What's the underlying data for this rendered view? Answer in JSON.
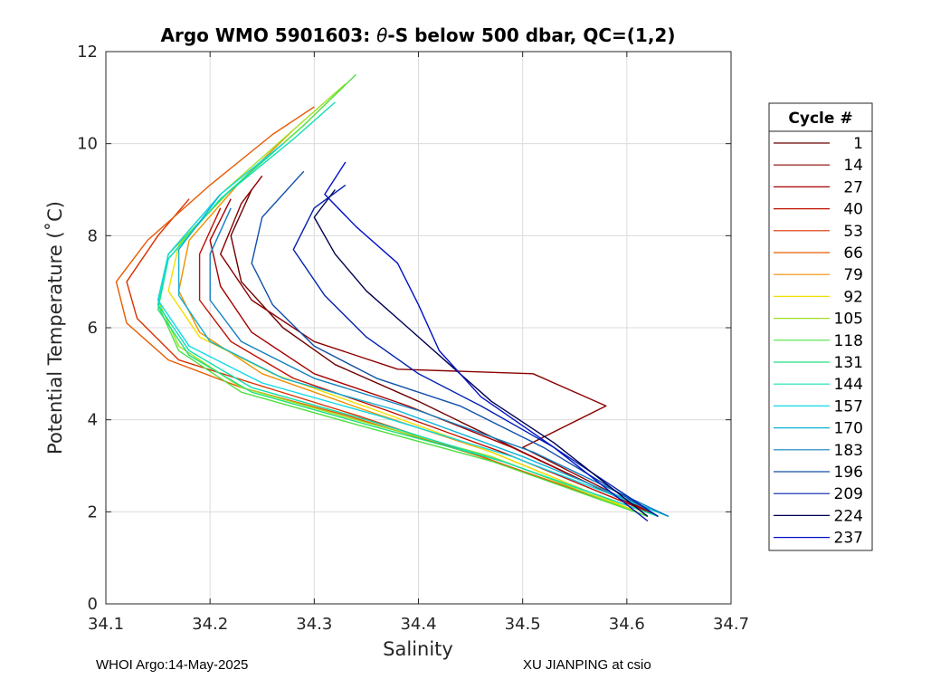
{
  "chart_data": {
    "type": "line",
    "title_prefix": "Argo WMO 5901603: ",
    "title_symbol": "θ",
    "title_suffix": "-S below 500 dbar,  QC=(1,2)",
    "xlabel": "Salinity",
    "ylabel": "Potential Temperature (˚C)",
    "xlim": [
      34.1,
      34.7
    ],
    "ylim": [
      0,
      12
    ],
    "xticks": [
      "34.1",
      "34.2",
      "34.3",
      "34.4",
      "34.5",
      "34.6",
      "34.7"
    ],
    "yticks": [
      "0",
      "2",
      "4",
      "6",
      "8",
      "10",
      "12"
    ],
    "grid": true,
    "legend_title": "Cycle #",
    "legend_position": "right-outside",
    "series": [
      {
        "name": "1",
        "color": "#6e0000",
        "points": [
          [
            34.63,
            1.9
          ],
          [
            34.5,
            3.3
          ],
          [
            34.4,
            4.4
          ],
          [
            34.32,
            5.2
          ],
          [
            34.27,
            6.0
          ],
          [
            34.23,
            7.0
          ],
          [
            34.22,
            8.0
          ],
          [
            34.24,
            9.0
          ]
        ]
      },
      {
        "name": "14",
        "color": "#8b0000",
        "points": [
          [
            34.63,
            1.9
          ],
          [
            34.5,
            3.4
          ],
          [
            34.58,
            4.3
          ],
          [
            34.51,
            5.0
          ],
          [
            34.38,
            5.1
          ],
          [
            34.3,
            5.7
          ],
          [
            34.24,
            6.6
          ],
          [
            34.21,
            7.6
          ],
          [
            34.23,
            8.7
          ],
          [
            34.25,
            9.3
          ]
        ]
      },
      {
        "name": "27",
        "color": "#a40000",
        "points": [
          [
            34.62,
            2.0
          ],
          [
            34.49,
            3.4
          ],
          [
            34.39,
            4.3
          ],
          [
            34.3,
            5.0
          ],
          [
            34.24,
            5.9
          ],
          [
            34.21,
            6.9
          ],
          [
            34.2,
            7.9
          ],
          [
            34.22,
            8.8
          ]
        ]
      },
      {
        "name": "40",
        "color": "#c01000",
        "points": [
          [
            34.62,
            2.0
          ],
          [
            34.48,
            3.3
          ],
          [
            34.37,
            4.2
          ],
          [
            34.28,
            4.9
          ],
          [
            34.22,
            5.7
          ],
          [
            34.19,
            6.6
          ],
          [
            34.19,
            7.6
          ],
          [
            34.21,
            8.6
          ]
        ]
      },
      {
        "name": "53",
        "color": "#d83000",
        "points": [
          [
            34.61,
            2.0
          ],
          [
            34.46,
            3.2
          ],
          [
            34.34,
            4.1
          ],
          [
            34.24,
            4.8
          ],
          [
            34.17,
            5.3
          ],
          [
            34.13,
            6.2
          ],
          [
            34.12,
            7.0
          ],
          [
            34.15,
            8.0
          ],
          [
            34.18,
            8.8
          ]
        ]
      },
      {
        "name": "66",
        "color": "#e85a00",
        "points": [
          [
            34.61,
            2.0
          ],
          [
            34.46,
            3.2
          ],
          [
            34.33,
            4.1
          ],
          [
            34.23,
            4.7
          ],
          [
            34.16,
            5.3
          ],
          [
            34.12,
            6.1
          ],
          [
            34.11,
            7.0
          ],
          [
            34.14,
            7.9
          ],
          [
            34.2,
            9.1
          ],
          [
            34.26,
            10.2
          ],
          [
            34.3,
            10.8
          ]
        ]
      },
      {
        "name": "79",
        "color": "#f09000",
        "points": [
          [
            34.61,
            2.0
          ],
          [
            34.47,
            3.3
          ],
          [
            34.35,
            4.2
          ],
          [
            34.25,
            5.0
          ],
          [
            34.19,
            5.9
          ],
          [
            34.17,
            6.8
          ],
          [
            34.18,
            7.9
          ],
          [
            34.23,
            9.2
          ],
          [
            34.28,
            10.3
          ]
        ]
      },
      {
        "name": "92",
        "color": "#f0e000",
        "points": [
          [
            34.61,
            2.0
          ],
          [
            34.47,
            3.3
          ],
          [
            34.36,
            4.2
          ],
          [
            34.26,
            5.0
          ],
          [
            34.19,
            5.8
          ],
          [
            34.16,
            6.8
          ],
          [
            34.17,
            7.8
          ],
          [
            34.22,
            9.0
          ],
          [
            34.28,
            10.2
          ]
        ]
      },
      {
        "name": "105",
        "color": "#a0e020",
        "points": [
          [
            34.62,
            1.9
          ],
          [
            34.47,
            3.2
          ],
          [
            34.34,
            4.0
          ],
          [
            34.23,
            4.7
          ],
          [
            34.17,
            5.6
          ],
          [
            34.15,
            6.6
          ],
          [
            34.16,
            7.6
          ],
          [
            34.21,
            8.9
          ],
          [
            34.28,
            10.3
          ],
          [
            34.33,
            11.3
          ]
        ]
      },
      {
        "name": "118",
        "color": "#50e040",
        "points": [
          [
            34.62,
            1.9
          ],
          [
            34.47,
            3.1
          ],
          [
            34.34,
            3.9
          ],
          [
            34.23,
            4.6
          ],
          [
            34.17,
            5.5
          ],
          [
            34.15,
            6.5
          ],
          [
            34.16,
            7.6
          ],
          [
            34.22,
            9.0
          ],
          [
            34.29,
            10.4
          ],
          [
            34.34,
            11.5
          ]
        ]
      },
      {
        "name": "131",
        "color": "#20e080",
        "points": [
          [
            34.63,
            1.9
          ],
          [
            34.48,
            3.1
          ],
          [
            34.35,
            3.9
          ],
          [
            34.24,
            4.6
          ],
          [
            34.18,
            5.4
          ],
          [
            34.15,
            6.4
          ],
          [
            34.16,
            7.5
          ],
          [
            34.21,
            8.8
          ],
          [
            34.27,
            10.0
          ]
        ]
      },
      {
        "name": "144",
        "color": "#10e0b0",
        "points": [
          [
            34.63,
            1.9
          ],
          [
            34.48,
            3.1
          ],
          [
            34.35,
            4.0
          ],
          [
            34.24,
            4.7
          ],
          [
            34.18,
            5.5
          ],
          [
            34.15,
            6.5
          ],
          [
            34.16,
            7.5
          ],
          [
            34.21,
            8.8
          ],
          [
            34.28,
            10.1
          ],
          [
            34.32,
            10.9
          ]
        ]
      },
      {
        "name": "157",
        "color": "#10d8e8",
        "points": [
          [
            34.64,
            1.9
          ],
          [
            34.49,
            3.2
          ],
          [
            34.36,
            4.1
          ],
          [
            34.25,
            4.8
          ],
          [
            34.18,
            5.6
          ],
          [
            34.15,
            6.6
          ],
          [
            34.16,
            7.6
          ],
          [
            34.21,
            8.9
          ],
          [
            34.27,
            10.0
          ]
        ]
      },
      {
        "name": "170",
        "color": "#10b0d8",
        "points": [
          [
            34.64,
            1.9
          ],
          [
            34.5,
            3.2
          ],
          [
            34.38,
            4.2
          ],
          [
            34.27,
            4.9
          ],
          [
            34.2,
            5.7
          ],
          [
            34.17,
            6.7
          ],
          [
            34.17,
            7.7
          ],
          [
            34.21,
            8.9
          ]
        ]
      },
      {
        "name": "183",
        "color": "#1080c0",
        "points": [
          [
            34.64,
            1.9
          ],
          [
            34.51,
            3.3
          ],
          [
            34.4,
            4.2
          ],
          [
            34.3,
            4.9
          ],
          [
            34.23,
            5.7
          ],
          [
            34.2,
            6.6
          ],
          [
            34.2,
            7.6
          ],
          [
            34.22,
            8.6
          ]
        ]
      },
      {
        "name": "196",
        "color": "#1050a8",
        "points": [
          [
            34.63,
            1.9
          ],
          [
            34.52,
            3.4
          ],
          [
            34.44,
            4.3
          ],
          [
            34.36,
            4.9
          ],
          [
            34.3,
            5.6
          ],
          [
            34.26,
            6.5
          ],
          [
            34.24,
            7.4
          ],
          [
            34.25,
            8.4
          ],
          [
            34.29,
            9.4
          ]
        ]
      },
      {
        "name": "209",
        "color": "#0020b0",
        "points": [
          [
            34.63,
            1.9
          ],
          [
            34.53,
            3.4
          ],
          [
            34.46,
            4.3
          ],
          [
            34.4,
            5.0
          ],
          [
            34.35,
            5.8
          ],
          [
            34.31,
            6.7
          ],
          [
            34.28,
            7.7
          ],
          [
            34.3,
            8.6
          ],
          [
            34.33,
            9.1
          ]
        ]
      },
      {
        "name": "224",
        "color": "#000050",
        "points": [
          [
            34.62,
            1.9
          ],
          [
            34.53,
            3.5
          ],
          [
            34.47,
            4.4
          ],
          [
            34.43,
            5.2
          ],
          [
            34.39,
            6.0
          ],
          [
            34.35,
            6.8
          ],
          [
            34.32,
            7.6
          ],
          [
            34.3,
            8.4
          ],
          [
            34.32,
            9.0
          ]
        ]
      },
      {
        "name": "237",
        "color": "#0010c8",
        "points": [
          [
            34.62,
            1.8
          ],
          [
            34.53,
            3.4
          ],
          [
            34.46,
            4.5
          ],
          [
            34.42,
            5.5
          ],
          [
            34.4,
            6.5
          ],
          [
            34.38,
            7.4
          ],
          [
            34.34,
            8.2
          ],
          [
            34.31,
            8.9
          ],
          [
            34.33,
            9.6
          ]
        ]
      }
    ]
  },
  "footer": {
    "left": "WHOI Argo:14-May-2025",
    "right": "XU JIANPING at csio"
  }
}
